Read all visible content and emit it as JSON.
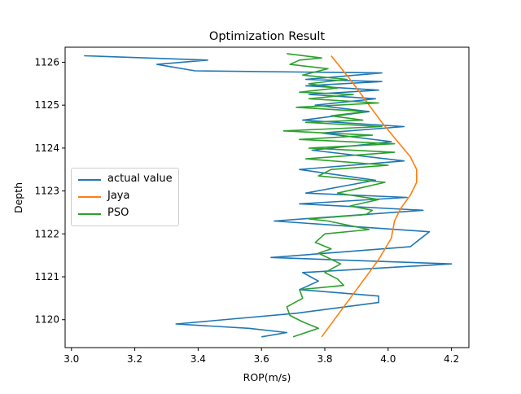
{
  "chart_data": {
    "type": "line",
    "title": "Optimization Result",
    "xlabel": "ROP(m/s)",
    "ylabel": "Depth",
    "xlim": [
      2.98,
      4.255
    ],
    "ylim": [
      1119.35,
      1126.35
    ],
    "xticks": [
      "3.0",
      "3.2",
      "3.4",
      "3.6",
      "3.8",
      "4.0",
      "4.2"
    ],
    "xtick_values": [
      3.0,
      3.2,
      3.4,
      3.6,
      3.8,
      4.0,
      4.2
    ],
    "yticks": [
      "1120",
      "1121",
      "1122",
      "1123",
      "1124",
      "1125",
      "1126"
    ],
    "ytick_values": [
      1120,
      1121,
      1122,
      1123,
      1124,
      1125,
      1126
    ],
    "grid": false,
    "legend_position": "center-left",
    "series": [
      {
        "name": "actual value",
        "color": "#1f77b4",
        "x": [
          3.6,
          3.68,
          3.56,
          3.33,
          3.71,
          3.97,
          3.97,
          3.72,
          3.78,
          3.73,
          4.2,
          3.63,
          4.07,
          4.13,
          3.64,
          4.11,
          3.72,
          4.06,
          3.74,
          3.96,
          3.72,
          4.05,
          3.76,
          4.01,
          3.79,
          4.05,
          3.73,
          3.94,
          3.77,
          3.96,
          3.75,
          3.97,
          3.74,
          3.98,
          3.74,
          3.98,
          3.39,
          3.27,
          3.43,
          3.04
        ],
        "y": [
          1119.6,
          1119.7,
          1119.8,
          1119.9,
          1120.15,
          1120.4,
          1120.55,
          1120.7,
          1120.9,
          1121.1,
          1121.3,
          1121.45,
          1121.7,
          1122.05,
          1122.3,
          1122.55,
          1122.7,
          1122.85,
          1122.95,
          1123.25,
          1123.5,
          1123.7,
          1123.95,
          1124.15,
          1124.35,
          1124.5,
          1124.65,
          1124.85,
          1125.0,
          1125.15,
          1125.25,
          1125.35,
          1125.45,
          1125.55,
          1125.6,
          1125.75,
          1125.8,
          1125.95,
          1126.05,
          1126.15
        ]
      },
      {
        "name": "Jaya",
        "color": "#ff7f0e",
        "x": [
          3.79,
          3.85,
          3.92,
          3.97,
          4.01,
          4.02,
          4.04,
          4.07,
          4.09,
          4.09,
          4.07,
          4.03,
          3.98,
          3.93,
          3.88,
          3.82
        ],
        "y": [
          1119.6,
          1120.2,
          1120.9,
          1121.4,
          1121.9,
          1122.3,
          1122.6,
          1122.9,
          1123.2,
          1123.5,
          1123.8,
          1124.15,
          1124.6,
          1125.1,
          1125.6,
          1126.15
        ]
      },
      {
        "name": "PSO",
        "color": "#2ca02c",
        "x": [
          3.7,
          3.78,
          3.73,
          3.69,
          3.68,
          3.73,
          3.72,
          3.86,
          3.84,
          3.8,
          3.85,
          3.78,
          3.82,
          3.77,
          3.8,
          3.94,
          3.81,
          3.75,
          3.93,
          3.95,
          3.88,
          3.97,
          3.84,
          3.93,
          3.99,
          3.78,
          3.82,
          4.0,
          3.74,
          4.02,
          3.75,
          4.02,
          3.72,
          3.95,
          3.67,
          3.98,
          3.74,
          3.92,
          3.82,
          3.93,
          3.71,
          3.97,
          3.75,
          3.89,
          3.72,
          3.84,
          3.75,
          3.87,
          3.73,
          3.81,
          3.69,
          3.72,
          3.79,
          3.68
        ],
        "y": [
          1119.6,
          1119.8,
          1119.95,
          1120.1,
          1120.3,
          1120.5,
          1120.7,
          1120.8,
          1120.95,
          1121.1,
          1121.3,
          1121.55,
          1121.65,
          1121.8,
          1122.0,
          1122.1,
          1122.3,
          1122.35,
          1122.45,
          1122.55,
          1122.65,
          1122.8,
          1122.95,
          1123.1,
          1123.2,
          1123.35,
          1123.5,
          1123.6,
          1123.75,
          1123.9,
          1124.0,
          1124.1,
          1124.2,
          1124.3,
          1124.4,
          1124.5,
          1124.6,
          1124.65,
          1124.75,
          1124.85,
          1124.95,
          1125.05,
          1125.15,
          1125.25,
          1125.3,
          1125.4,
          1125.5,
          1125.6,
          1125.7,
          1125.85,
          1125.95,
          1126.05,
          1126.1,
          1126.2
        ]
      }
    ]
  }
}
